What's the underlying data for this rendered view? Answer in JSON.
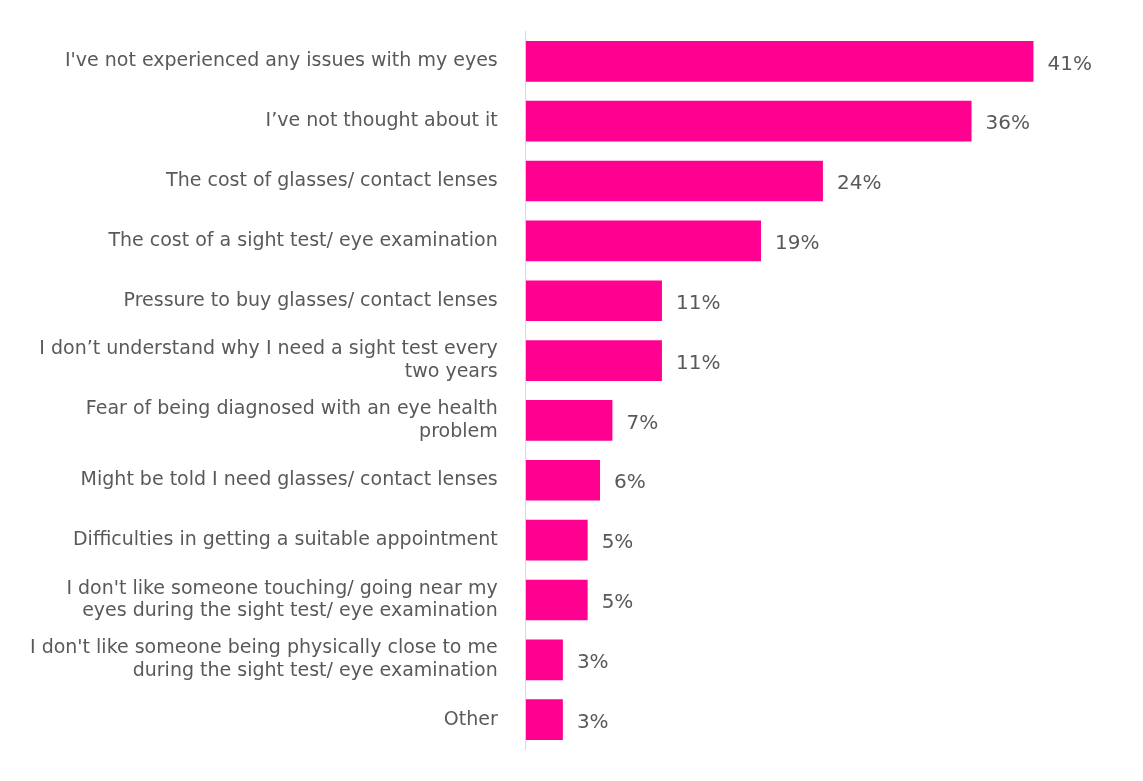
{
  "chart_data": {
    "type": "bar",
    "orientation": "horizontal",
    "categories": [
      "I've not experienced any issues with my eyes",
      "I’ve not thought about it",
      "The cost of glasses/ contact lenses",
      "The cost of a sight test/ eye examination",
      "Pressure to buy glasses/ contact lenses",
      "I don’t understand why I need a sight test every two years",
      "Fear of being diagnosed with an eye health problem",
      "Might be told I need glasses/ contact lenses",
      "Difficulties in getting a suitable appointment",
      "I don't like someone touching/ going near my eyes during the sight test/ eye examination",
      "I don't like someone being physically close to me during the sight test/ eye examination",
      "Other"
    ],
    "values": [
      41,
      36,
      24,
      19,
      11,
      11,
      7,
      6,
      5,
      5,
      3,
      3
    ],
    "value_labels": [
      "41%",
      "36%",
      "24%",
      "19%",
      "11%",
      "11%",
      "7%",
      "6%",
      "5%",
      "5%",
      "3%",
      "3%"
    ],
    "color": "#ff0090"
  }
}
